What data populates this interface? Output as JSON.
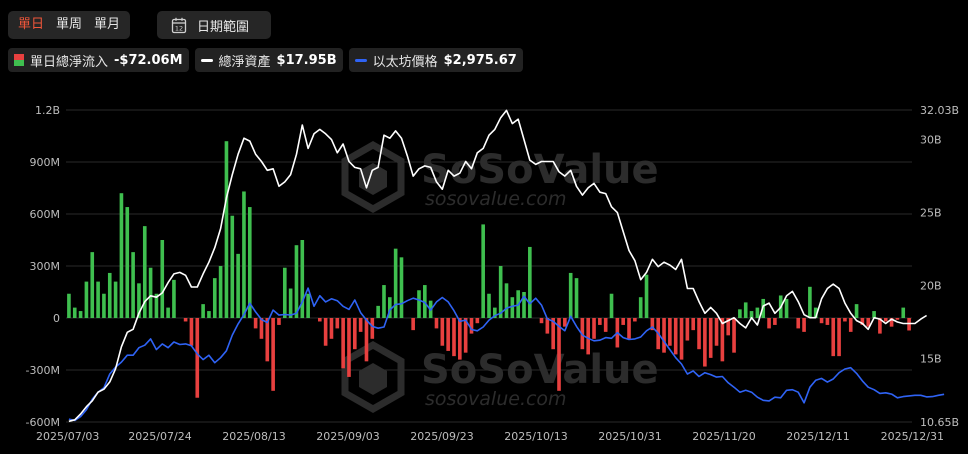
{
  "toolbar": {
    "periods": [
      "單日",
      "單周",
      "單月"
    ],
    "date_range_label": "日期範圍",
    "calendar_day": "12"
  },
  "legend": {
    "flow_label": "單日總淨流入",
    "flow_value": "-$72.06M",
    "assets_label": "總淨資產",
    "assets_value": "$17.95B",
    "eth_label": "以太坊價格",
    "eth_value": "$2,975.67"
  },
  "watermark": {
    "brand": "SoSoValue",
    "url": "sosovalue.com"
  },
  "colors": {
    "inflow": "#3fbf4f",
    "outflow": "#e8403f",
    "assets": "#ffffff",
    "eth": "#2f63f5",
    "active": "#f0563a"
  },
  "chart_data": {
    "type": "bar",
    "xlabels": [
      "2025/07/03",
      "2025/07/24",
      "2025/08/13",
      "2025/09/03",
      "2025/09/23",
      "2025/10/13",
      "2025/10/31",
      "2025/11/20",
      "2025/12/11",
      "2025/12/31"
    ],
    "yleft_ticks": [
      "-600M",
      "-300M",
      "0",
      "300M",
      "600M",
      "900M",
      "1.2B"
    ],
    "yright_ticks": [
      "10.65B",
      "15B",
      "20B",
      "25B",
      "30B",
      "32.03B"
    ],
    "yleft_range_millions": [
      -600,
      1200
    ],
    "yright_range_billions": [
      10.65,
      32.03
    ],
    "grid": true,
    "series": [
      {
        "name": "單日總淨流入",
        "type": "bar",
        "unit": "M USD",
        "values": [
          140,
          60,
          40,
          210,
          380,
          210,
          140,
          260,
          210,
          720,
          640,
          380,
          200,
          530,
          290,
          140,
          450,
          60,
          220,
          0,
          -20,
          -160,
          -460,
          80,
          40,
          230,
          300,
          1020,
          590,
          370,
          730,
          640,
          -60,
          -120,
          -250,
          -420,
          -40,
          290,
          170,
          420,
          450,
          140,
          0,
          -20,
          -160,
          -120,
          -60,
          -290,
          -340,
          -180,
          -80,
          -250,
          -120,
          70,
          190,
          120,
          400,
          350,
          0,
          -70,
          160,
          190,
          100,
          -60,
          -160,
          -190,
          -220,
          -240,
          -200,
          -90,
          -30,
          540,
          140,
          60,
          300,
          200,
          120,
          160,
          150,
          410,
          0,
          -30,
          -90,
          -180,
          -420,
          -50,
          260,
          230,
          -180,
          -210,
          -120,
          -40,
          -80,
          140,
          -170,
          -40,
          -120,
          -20,
          120,
          250,
          -70,
          -180,
          -200,
          -160,
          -210,
          -240,
          -130,
          -70,
          -180,
          -280,
          -230,
          -160,
          -250,
          -100,
          -200,
          50,
          90,
          40,
          60,
          110,
          -60,
          -40,
          130,
          110,
          0,
          -60,
          -80,
          180,
          60,
          -30,
          -40,
          -220,
          -220,
          -20,
          -80,
          80,
          -40,
          -50,
          40,
          -90,
          -20,
          -50,
          -10,
          60,
          -72
        ]
      },
      {
        "name": "總淨資產",
        "type": "line",
        "unit": "B USD",
        "values": [
          10.7,
          10.8,
          11.2,
          11.7,
          12.1,
          12.7,
          12.9,
          13.4,
          14.3,
          15.8,
          16.8,
          17.0,
          18.1,
          18.9,
          19.3,
          19.2,
          19.5,
          20.2,
          20.8,
          20.9,
          20.7,
          19.9,
          19.9,
          20.8,
          21.6,
          22.6,
          23.9,
          26.0,
          27.6,
          29.0,
          30.1,
          29.9,
          29.0,
          28.5,
          27.9,
          28.0,
          26.8,
          27.1,
          27.6,
          29.0,
          31.0,
          29.4,
          30.4,
          30.7,
          30.4,
          30.0,
          29.1,
          29.7,
          28.5,
          28.1,
          28.0,
          26.7,
          27.9,
          28.1,
          30.3,
          30.1,
          30.6,
          30.1,
          28.9,
          27.5,
          28.0,
          28.2,
          28.1,
          27.1,
          26.6,
          27.9,
          27.5,
          27.7,
          28.5,
          28.0,
          29.1,
          29.4,
          30.3,
          30.7,
          31.5,
          32.0,
          31.1,
          31.4,
          30.0,
          28.6,
          28.3,
          28.5,
          28.5,
          28.5,
          27.8,
          27.5,
          27.9,
          26.8,
          26.2,
          26.7,
          27.0,
          26.4,
          26.3,
          25.4,
          25.0,
          23.7,
          22.4,
          21.7,
          20.4,
          20.9,
          21.8,
          21.3,
          21.6,
          21.4,
          21.1,
          21.8,
          19.8,
          19.8,
          18.9,
          18.1,
          18.5,
          18.1,
          17.4,
          17.6,
          17.8,
          17.4,
          17.1,
          17.8,
          17.3,
          18.6,
          18.8,
          18.1,
          18.5,
          19.3,
          19.6,
          18.9,
          18.0,
          17.8,
          17.8,
          19.1,
          19.8,
          20.1,
          19.8,
          18.8,
          18.1,
          17.6,
          17.4,
          17.0,
          17.8,
          17.7,
          17.4,
          17.7,
          17.5,
          17.4,
          17.4,
          17.4,
          17.7,
          17.95
        ]
      },
      {
        "name": "以太坊價格",
        "type": "line",
        "unit": "USD",
        "values": [
          2580,
          2560,
          2620,
          2730,
          2900,
          3010,
          3080,
          3300,
          3410,
          3490,
          3600,
          3600,
          3720,
          3760,
          3860,
          3690,
          3780,
          3720,
          3810,
          3770,
          3780,
          3750,
          3620,
          3530,
          3600,
          3480,
          3560,
          3670,
          3920,
          4100,
          4250,
          4430,
          4290,
          4170,
          4120,
          4320,
          4240,
          4250,
          4240,
          4270,
          4450,
          4670,
          4380,
          4550,
          4450,
          4500,
          4470,
          4380,
          4330,
          4480,
          4280,
          4160,
          4060,
          4030,
          4050,
          4320,
          4410,
          4420,
          4470,
          4510,
          4480,
          4440,
          4320,
          4450,
          4520,
          4450,
          4310,
          4140,
          4160,
          4010,
          3990,
          4050,
          4160,
          4230,
          4270,
          4350,
          4380,
          4400,
          4540,
          4420,
          4510,
          4400,
          4180,
          4140,
          4060,
          3990,
          4220,
          4060,
          3920,
          3870,
          3830,
          3840,
          3880,
          3870,
          3960,
          3880,
          3850,
          3860,
          3890,
          3990,
          4050,
          3950,
          3820,
          3690,
          3560,
          3460,
          3300,
          3350,
          3260,
          3320,
          3290,
          3250,
          3260,
          3160,
          3090,
          3010,
          3040,
          3010,
          2930,
          2880,
          2870,
          2930,
          2920,
          3040,
          3050,
          3010,
          2840,
          3090,
          3200,
          3230,
          3170,
          3220,
          3320,
          3380,
          3400,
          3310,
          3190,
          3090,
          3050,
          2990,
          3000,
          2980,
          2920,
          2940,
          2950,
          2960,
          2960,
          2935,
          2940,
          2960,
          2975.67
        ]
      }
    ]
  }
}
